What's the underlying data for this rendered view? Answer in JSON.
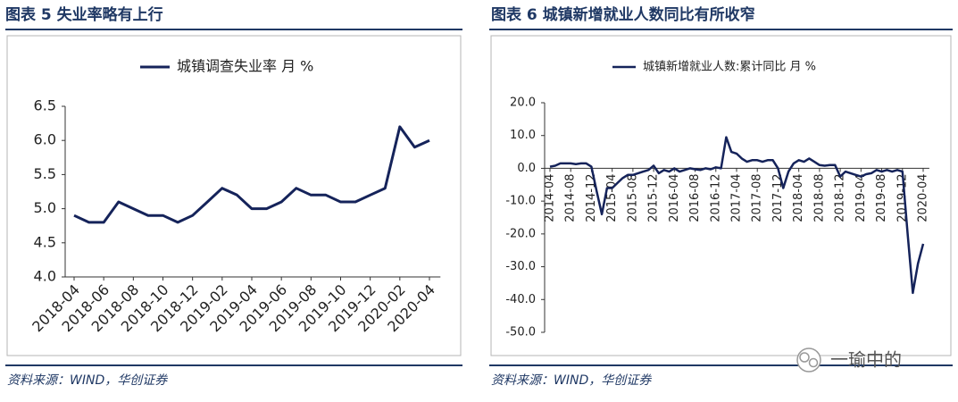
{
  "chart_data": [
    {
      "type": "line",
      "title": "图表 5   失业率略有上行",
      "source": "资料来源：WIND，华创证券",
      "categories": [
        "2018-04",
        null,
        "2018-06",
        null,
        "2018-08",
        null,
        "2018-10",
        null,
        "2018-12",
        null,
        "2019-02",
        null,
        "2019-04",
        null,
        "2019-06",
        null,
        "2019-08",
        null,
        "2019-10",
        null,
        "2019-12",
        null,
        "2020-02",
        null,
        "2020-04"
      ],
      "series": [
        {
          "name": "城镇调查失业率 月 %",
          "color": "#15235a",
          "values": [
            4.9,
            4.8,
            4.8,
            5.1,
            5.0,
            4.9,
            4.9,
            4.8,
            4.9,
            5.1,
            5.3,
            5.2,
            5.0,
            5.0,
            5.1,
            5.3,
            5.2,
            5.2,
            5.1,
            5.1,
            5.2,
            5.3,
            6.2,
            5.9,
            6.0
          ]
        }
      ],
      "ylim": [
        4,
        6.5
      ],
      "yticks": [
        {
          "value": 4,
          "label": "4.0"
        },
        4.5,
        {
          "value": 5,
          "label": "5.0"
        },
        5.5,
        {
          "value": 6,
          "label": "6.0"
        },
        6.5
      ]
    },
    {
      "type": "line",
      "title": "图表 6   城镇新增就业人数同比有所收窄",
      "source": "资料来源：WIND，华创证券",
      "categories": [
        "2014-04",
        null,
        null,
        null,
        "2014-08",
        null,
        null,
        null,
        "2014-12",
        null,
        null,
        null,
        "2015-04",
        null,
        null,
        null,
        "2015-08",
        null,
        null,
        null,
        "2015-12",
        null,
        null,
        null,
        "2016-04",
        null,
        null,
        null,
        "2016-08",
        null,
        null,
        null,
        "2016-12",
        null,
        null,
        null,
        "2017-04",
        null,
        null,
        null,
        "2017-08",
        null,
        null,
        null,
        "2017-12",
        null,
        null,
        null,
        "2018-04",
        null,
        null,
        null,
        "2018-08",
        null,
        null,
        null,
        "2018-12",
        null,
        null,
        null,
        "2019-04",
        null,
        null,
        null,
        "2019-08",
        null,
        null,
        null,
        "2019-12",
        null,
        null,
        null,
        "2020-04"
      ],
      "series": [
        {
          "name": "城镇新增就业人数:累计同比 月 %",
          "color": "#15235a",
          "values": [
            0.5,
            0.8,
            1.5,
            1.5,
            1.5,
            1.3,
            1.5,
            1.5,
            0.5,
            -7,
            -14,
            -6,
            -6,
            -4.5,
            -3,
            -2,
            -2,
            -1.5,
            -1,
            -0.5,
            0.8,
            -1.5,
            -0.5,
            -1,
            0,
            -1,
            -0.5,
            0,
            -0.3,
            -0.5,
            0,
            -0.3,
            0.3,
            0,
            9.5,
            5,
            4.5,
            3,
            2,
            2.5,
            2.5,
            2,
            2.5,
            2.5,
            0,
            -6,
            -1,
            1.5,
            2.5,
            2,
            3,
            2,
            1,
            0.8,
            1,
            1,
            -2.5,
            -1,
            -1.5,
            -2,
            -2.5,
            -1.8,
            -1.5,
            -0.5,
            -1,
            -0.5,
            -1,
            -0.5,
            -1,
            -20,
            -38,
            -29,
            -23
          ]
        }
      ],
      "ylim": [
        -50,
        20
      ],
      "yticks": [
        {
          "value": 20,
          "label": "20.0"
        },
        {
          "value": 10,
          "label": "10.0"
        },
        {
          "value": 0,
          "label": "0.0"
        },
        {
          "value": -10,
          "label": "-10.0"
        },
        {
          "value": -20,
          "label": "-20.0"
        },
        {
          "value": -30,
          "label": "-30.0"
        },
        {
          "value": -40,
          "label": "-40.0"
        },
        {
          "value": -50,
          "label": "-50.0"
        }
      ]
    }
  ],
  "watermark": "一瑜中的"
}
